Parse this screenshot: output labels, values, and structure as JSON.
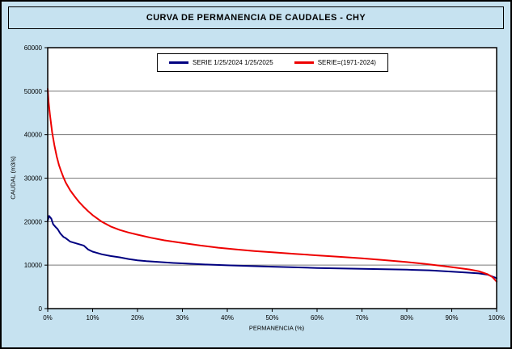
{
  "chart_data": {
    "type": "line",
    "title": "CURVA DE PERMANENCIA DE CAUDALES - CHY",
    "xlabel": "PERMANENCIA (%)",
    "ylabel": "CAUDAL (m3/s)",
    "xlim": [
      0,
      100
    ],
    "ylim": [
      0,
      60000
    ],
    "x_tick_values": [
      0,
      10,
      20,
      30,
      40,
      50,
      60,
      70,
      80,
      90,
      100
    ],
    "x_tick_labels": [
      "0%",
      "10%",
      "20%",
      "30%",
      "40%",
      "50%",
      "60%",
      "70%",
      "80%",
      "90%",
      "100%"
    ],
    "y_tick_values": [
      0,
      10000,
      20000,
      30000,
      40000,
      50000,
      60000
    ],
    "y_tick_labels": [
      "0",
      "10000",
      "20000",
      "30000",
      "40000",
      "50000",
      "60000"
    ],
    "grid": "horizontal",
    "legend_position": "top-center",
    "plot_bg": "#ffffff",
    "page_bg": "#c6e2f0",
    "grid_color": "#7a7a7a",
    "series": [
      {
        "name": "SERIE 1/25/2024 1/25/2025",
        "color": "#000080",
        "width": 2,
        "x": [
          0,
          0.3,
          0.8,
          1.2,
          1.8,
          2.2,
          2.8,
          3.5,
          4,
          4.5,
          5,
          6,
          7,
          8,
          9,
          10,
          11,
          12,
          14,
          16,
          18,
          20,
          22,
          25,
          28,
          30,
          35,
          40,
          45,
          50,
          55,
          60,
          65,
          70,
          75,
          80,
          85,
          90,
          93,
          96,
          98,
          100
        ],
        "y": [
          20200,
          21300,
          20700,
          19400,
          18700,
          18300,
          17300,
          16500,
          16200,
          15800,
          15400,
          15100,
          14800,
          14500,
          13600,
          13100,
          12800,
          12500,
          12100,
          11800,
          11400,
          11100,
          10900,
          10700,
          10500,
          10400,
          10150,
          9950,
          9800,
          9650,
          9500,
          9350,
          9250,
          9150,
          9050,
          8950,
          8800,
          8500,
          8300,
          8100,
          7800,
          7000
        ]
      },
      {
        "name": "SERIE=(1971-2024)",
        "color": "#ee0000",
        "width": 2,
        "x": [
          0,
          0.2,
          0.5,
          1,
          1.5,
          2,
          2.5,
          3,
          3.5,
          4,
          5,
          6,
          7,
          8,
          9,
          10,
          12,
          14,
          16,
          18,
          20,
          23,
          26,
          30,
          34,
          38,
          42,
          46,
          50,
          55,
          60,
          65,
          70,
          75,
          80,
          84,
          88,
          91,
          94,
          96,
          98,
          99,
          100
        ],
        "y": [
          50500,
          47500,
          44500,
          40500,
          37500,
          35000,
          33000,
          31500,
          30200,
          29000,
          27200,
          25800,
          24500,
          23400,
          22400,
          21500,
          20000,
          18900,
          18100,
          17500,
          17000,
          16300,
          15700,
          15100,
          14500,
          14000,
          13600,
          13250,
          12950,
          12600,
          12250,
          11900,
          11550,
          11150,
          10700,
          10300,
          9800,
          9400,
          9000,
          8600,
          7900,
          7300,
          6200
        ]
      }
    ]
  }
}
